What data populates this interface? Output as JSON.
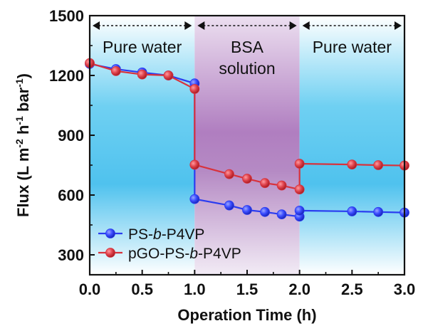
{
  "chart_data": {
    "type": "line",
    "xlabel": "Operation Time (h)",
    "ylabel_parts": [
      "Flux (L m",
      "-2",
      " h",
      "-1",
      " bar",
      "-1",
      ")"
    ],
    "xlim": [
      0,
      3
    ],
    "ylim": [
      200,
      1500
    ],
    "x_ticks": [
      "0.0",
      "0.5",
      "1.0",
      "1.5",
      "2.0",
      "2.5",
      "3.0"
    ],
    "y_ticks": [
      "300",
      "600",
      "900",
      "1200",
      "1500"
    ],
    "regions": [
      {
        "label": "Pure water",
        "label_lines": [
          "Pure water"
        ],
        "x_start": 0,
        "x_end": 1,
        "color": "#5bc8ec"
      },
      {
        "label": "BSA solution",
        "label_lines": [
          "BSA",
          "solution"
        ],
        "x_start": 1,
        "x_end": 2,
        "color": "#b77fc4"
      },
      {
        "label": "Pure water",
        "label_lines": [
          "Pure water"
        ],
        "x_start": 2,
        "x_end": 3,
        "color": "#5bc8ec"
      }
    ],
    "series": [
      {
        "name_parts": [
          "PS-",
          "b",
          "-P4VP"
        ],
        "color": "#2a3cf0",
        "marker_color": "#3a4cff",
        "points": [
          [
            0,
            1258
          ],
          [
            0.25,
            1232
          ],
          [
            0.5,
            1215
          ],
          [
            0.75,
            1200
          ],
          [
            1.0,
            1160
          ],
          [
            1.0,
            580
          ],
          [
            1.33,
            548
          ],
          [
            1.5,
            525
          ],
          [
            1.67,
            515
          ],
          [
            1.83,
            503
          ],
          [
            2.0,
            492
          ],
          [
            2.0,
            522
          ],
          [
            2.5,
            518
          ],
          [
            2.75,
            515
          ],
          [
            3.0,
            512
          ]
        ]
      },
      {
        "name_parts": [
          "pGO-PS-",
          "b",
          "-P4VP"
        ],
        "color": "#d8323c",
        "marker_color": "#e0434c",
        "points": [
          [
            0,
            1262
          ],
          [
            0.25,
            1222
          ],
          [
            0.5,
            1205
          ],
          [
            0.75,
            1200
          ],
          [
            1.0,
            1132
          ],
          [
            1.0,
            752
          ],
          [
            1.33,
            705
          ],
          [
            1.5,
            682
          ],
          [
            1.67,
            660
          ],
          [
            1.83,
            648
          ],
          [
            2.0,
            628
          ],
          [
            2.0,
            757
          ],
          [
            2.5,
            753
          ],
          [
            2.75,
            750
          ],
          [
            3.0,
            748
          ]
        ]
      }
    ],
    "legend_position": "bottom-left"
  }
}
